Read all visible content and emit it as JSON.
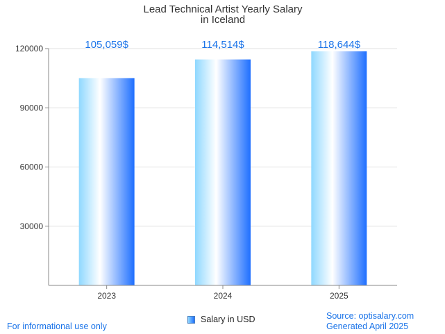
{
  "chart_data": {
    "type": "bar",
    "title_lines": [
      "Lead Technical Artist Yearly Salary",
      "in Iceland"
    ],
    "categories": [
      "2023",
      "2024",
      "2025"
    ],
    "series": [
      {
        "name": "Salary in USD",
        "values": [
          105059,
          114514,
          118644
        ]
      }
    ],
    "data_labels": [
      "105,059$",
      "114,514$",
      "118,644$"
    ],
    "yticks": [
      "30000",
      "60000",
      "90000",
      "120000"
    ],
    "ytick_values": [
      30000,
      60000,
      90000,
      120000
    ],
    "ylim": [
      0,
      120000
    ],
    "xlabel": "",
    "ylabel": "",
    "grid": true,
    "legend_position": "bottom-center",
    "colors": {
      "bar_edge": "#1e6fff",
      "bar_light": "#8fd8ff",
      "label": "#1a73e8",
      "grid": "#e0e0e0"
    }
  },
  "footer": {
    "left_note": "For informational use only",
    "source": "Source: optisalary.com",
    "generated": "Generated April 2025"
  }
}
